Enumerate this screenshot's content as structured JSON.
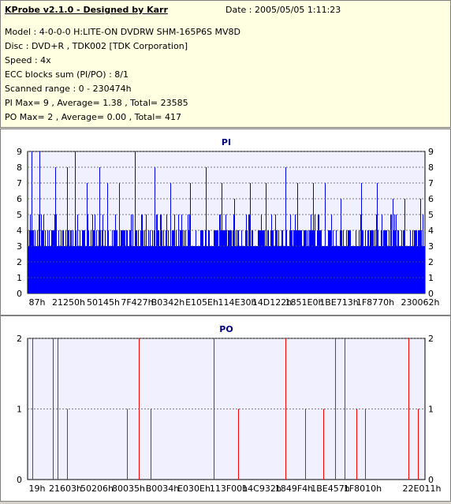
{
  "header": {
    "title": "KProbe v2.1.0 - Designed by Karr",
    "date": "Date : 2005/05/05 1:11:23",
    "lines": [
      "Model : 4-0-0-0 H:LITE-ON DVDRW SHM-165P6S MV8D",
      "Disc : DVD+R , TDK002 [TDK Corporation]",
      "Speed : 4x",
      "ECC blocks sum (PI/PO) : 8/1",
      "Scanned range : 0 - 230474h",
      "PI Max= 9 , Average= 1.38 , Total= 23585",
      "PO Max= 2 , Average= 0.00 , Total= 417"
    ]
  },
  "colors": {
    "pi": "#0000ff",
    "po": "#ff0000",
    "plot_bg": "#f0f0ff",
    "title": "#000080"
  },
  "chart_data": [
    {
      "type": "bar",
      "title": "PI",
      "ylim": [
        0,
        9
      ],
      "yticks": [
        "0",
        "1",
        "2",
        "3",
        "4",
        "5",
        "6",
        "7",
        "8",
        "9"
      ],
      "xticks": [
        "87h",
        "21250h",
        "50145h",
        "7F427h",
        "B0342h",
        "E105Eh",
        "114E30h",
        "14D122h",
        "1851E0h",
        "1BE713h",
        "1F8770h",
        "230062h"
      ],
      "baseline_band": [
        3,
        4
      ],
      "spikes": [
        {
          "pos": 0.01,
          "value": 9
        },
        {
          "pos": 0.03,
          "value": 9
        },
        {
          "pos": 0.07,
          "value": 8
        },
        {
          "pos": 0.1,
          "value": 8
        },
        {
          "pos": 0.12,
          "value": 9
        },
        {
          "pos": 0.15,
          "value": 7
        },
        {
          "pos": 0.18,
          "value": 8
        },
        {
          "pos": 0.2,
          "value": 7
        },
        {
          "pos": 0.23,
          "value": 7
        },
        {
          "pos": 0.27,
          "value": 9
        },
        {
          "pos": 0.32,
          "value": 8
        },
        {
          "pos": 0.36,
          "value": 7
        },
        {
          "pos": 0.41,
          "value": 7
        },
        {
          "pos": 0.45,
          "value": 8
        },
        {
          "pos": 0.49,
          "value": 7
        },
        {
          "pos": 0.52,
          "value": 6
        },
        {
          "pos": 0.56,
          "value": 7
        },
        {
          "pos": 0.6,
          "value": 7
        },
        {
          "pos": 0.65,
          "value": 8
        },
        {
          "pos": 0.68,
          "value": 7
        },
        {
          "pos": 0.72,
          "value": 7
        },
        {
          "pos": 0.75,
          "value": 7
        },
        {
          "pos": 0.79,
          "value": 6
        },
        {
          "pos": 0.84,
          "value": 7
        },
        {
          "pos": 0.88,
          "value": 7
        },
        {
          "pos": 0.92,
          "value": 6
        },
        {
          "pos": 0.95,
          "value": 6
        },
        {
          "pos": 0.99,
          "value": 6
        }
      ]
    },
    {
      "type": "bar",
      "title": "PO",
      "ylim": [
        0,
        2
      ],
      "yticks": [
        "0",
        "1",
        "2"
      ],
      "xticks": [
        "19h",
        "21603h",
        "50206h",
        "80035h",
        "B0034h",
        "E030Eh",
        "113F00h",
        "14C932h",
        "1849F4h",
        "1BE457h",
        "1F8010h",
        "22E011h"
      ],
      "spikes": [
        {
          "pos": 0.012,
          "value": 2
        },
        {
          "pos": 0.064,
          "value": 2
        },
        {
          "pos": 0.075,
          "value": 2
        },
        {
          "pos": 0.1,
          "value": 1
        },
        {
          "pos": 0.25,
          "value": 1
        },
        {
          "pos": 0.28,
          "value": 2
        },
        {
          "pos": 0.31,
          "value": 1
        },
        {
          "pos": 0.47,
          "value": 2
        },
        {
          "pos": 0.53,
          "value": 1
        },
        {
          "pos": 0.65,
          "value": 2
        },
        {
          "pos": 0.7,
          "value": 1
        },
        {
          "pos": 0.745,
          "value": 1
        },
        {
          "pos": 0.775,
          "value": 2
        },
        {
          "pos": 0.8,
          "value": 2
        },
        {
          "pos": 0.83,
          "value": 1
        },
        {
          "pos": 0.85,
          "value": 1
        },
        {
          "pos": 0.96,
          "value": 2
        },
        {
          "pos": 0.985,
          "value": 1
        }
      ]
    }
  ]
}
